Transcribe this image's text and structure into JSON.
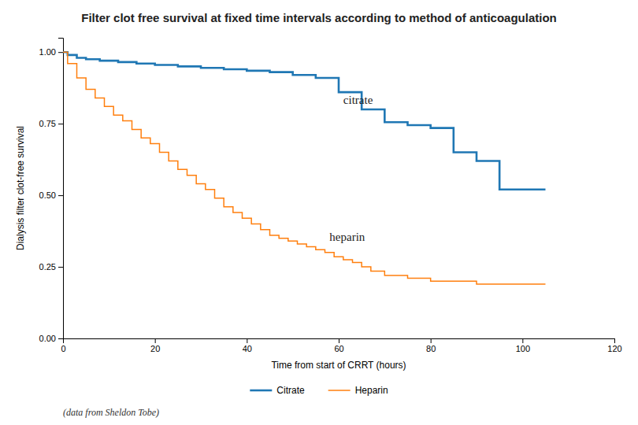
{
  "chart_data": {
    "type": "step",
    "title": "Filter clot free survival at fixed time intervals according to method of anticoagulation",
    "x_label": "Time from start of CRRT (hours)",
    "y_label": "Dialysis filter clot-free survival",
    "footnote": "(data from Sheldon Tobe)",
    "xlim": [
      0,
      120
    ],
    "ylim": [
      0.0,
      1.05
    ],
    "xticks": [
      0,
      20,
      40,
      60,
      80,
      100,
      120
    ],
    "yticks": [
      {
        "value": 0.0,
        "label": "0.00"
      },
      {
        "value": 0.25,
        "label": "0.25"
      },
      {
        "value": 0.5,
        "label": "0.50"
      },
      {
        "value": 0.75,
        "label": "0.75"
      },
      {
        "value": 1.0,
        "label": "1.00"
      }
    ],
    "grid": false,
    "legend": "bottom",
    "series": [
      {
        "name": "Citrate",
        "x": [
          0,
          1,
          3,
          5,
          8,
          12,
          16,
          20,
          25,
          30,
          35,
          40,
          45,
          50,
          55,
          60,
          65,
          70,
          75,
          80,
          85,
          90,
          95,
          100,
          105
        ],
        "values": [
          1.0,
          0.99,
          0.98,
          0.975,
          0.97,
          0.965,
          0.96,
          0.955,
          0.95,
          0.945,
          0.94,
          0.935,
          0.93,
          0.92,
          0.91,
          0.86,
          0.8,
          0.755,
          0.745,
          0.735,
          0.65,
          0.62,
          0.52,
          0.52,
          0.52
        ]
      },
      {
        "name": "Heparin",
        "x": [
          0,
          1,
          3,
          5,
          7,
          9,
          11,
          13,
          15,
          17,
          19,
          21,
          23,
          25,
          27,
          29,
          31,
          33,
          35,
          37,
          39,
          41,
          43,
          45,
          47,
          49,
          51,
          53,
          55,
          57,
          59,
          61,
          63,
          65,
          67,
          70,
          75,
          80,
          90,
          100,
          105
        ],
        "values": [
          1.0,
          0.96,
          0.91,
          0.87,
          0.84,
          0.81,
          0.78,
          0.76,
          0.73,
          0.7,
          0.68,
          0.65,
          0.62,
          0.59,
          0.57,
          0.54,
          0.52,
          0.49,
          0.46,
          0.44,
          0.42,
          0.4,
          0.38,
          0.36,
          0.35,
          0.34,
          0.33,
          0.32,
          0.31,
          0.3,
          0.285,
          0.275,
          0.265,
          0.25,
          0.235,
          0.22,
          0.21,
          0.2,
          0.19,
          0.19,
          0.19
        ]
      }
    ],
    "annotations": [
      {
        "text": "citrate",
        "x": 61,
        "y": 0.82
      },
      {
        "text": "heparin",
        "x": 58,
        "y": 0.34
      }
    ]
  }
}
